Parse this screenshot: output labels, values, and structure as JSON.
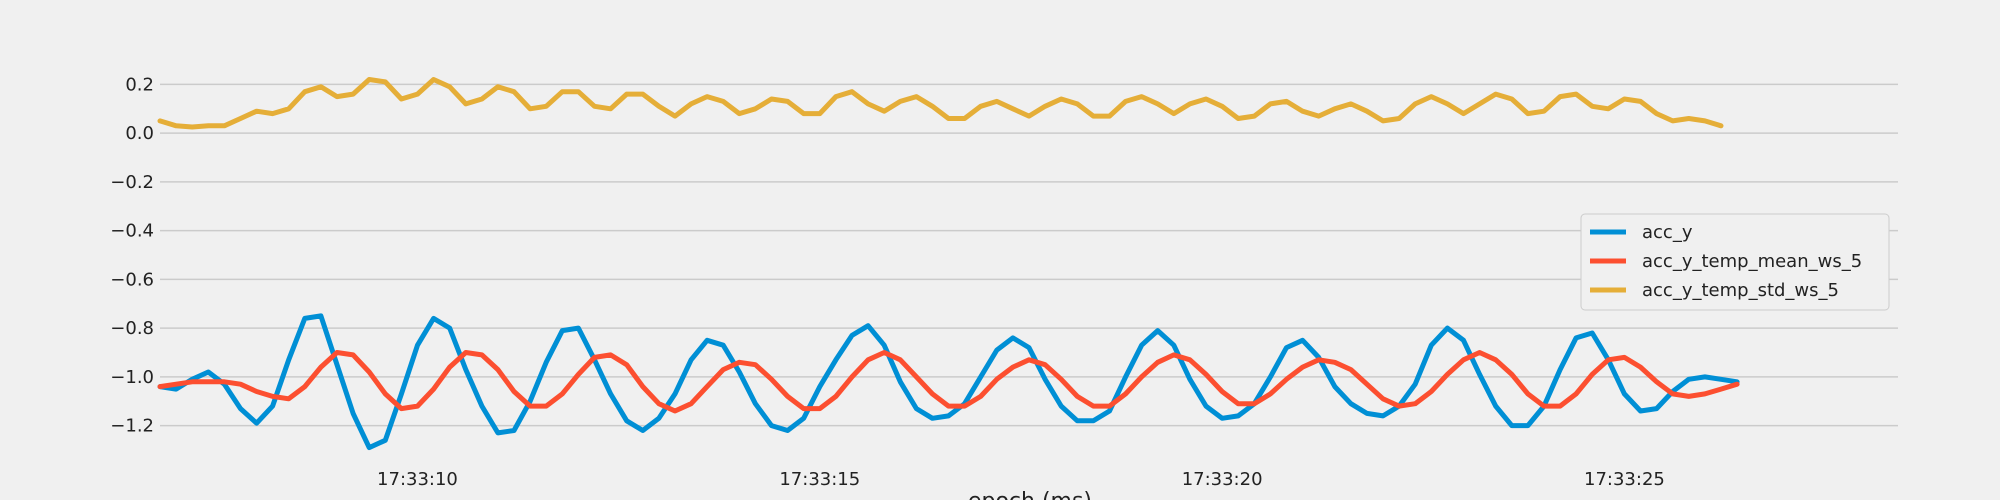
{
  "chart_data": {
    "type": "line",
    "title": "",
    "xlabel": "epoch (ms)",
    "ylabel": "",
    "x_ticks": [
      "17:33:10",
      "17:33:15",
      "17:33:20",
      "17:33:25"
    ],
    "x_tick_seconds": [
      10,
      15,
      20,
      25
    ],
    "x_start": "17:33:06.8",
    "x_end": "17:33:28.4",
    "x_step_seconds": 0.2,
    "xlim_seconds": [
      6.8,
      28.4
    ],
    "ylim": [
      -1.3,
      0.3
    ],
    "y_ticks": [
      0.2,
      0.0,
      -0.2,
      -0.4,
      -0.6,
      -0.8,
      -1.0,
      -1.2
    ],
    "y_tick_labels": [
      "0.2",
      "0.0",
      "−0.2",
      "−0.4",
      "−0.6",
      "−0.8",
      "−1.0",
      "−1.2"
    ],
    "grid": true,
    "legend_position": "right",
    "series": [
      {
        "name": "acc_y",
        "color": "#008fd5",
        "values": [
          -1.04,
          -1.05,
          -1.01,
          -0.98,
          -1.03,
          -1.13,
          -1.19,
          -1.12,
          -0.93,
          -0.76,
          -0.75,
          -0.95,
          -1.15,
          -1.29,
          -1.26,
          -1.07,
          -0.87,
          -0.76,
          -0.8,
          -0.97,
          -1.12,
          -1.23,
          -1.22,
          -1.1,
          -0.94,
          -0.81,
          -0.8,
          -0.93,
          -1.07,
          -1.18,
          -1.22,
          -1.17,
          -1.07,
          -0.93,
          -0.85,
          -0.87,
          -0.98,
          -1.11,
          -1.2,
          -1.22,
          -1.17,
          -1.04,
          -0.93,
          -0.83,
          -0.79,
          -0.87,
          -1.02,
          -1.13,
          -1.17,
          -1.16,
          -1.11,
          -1.0,
          -0.89,
          -0.84,
          -0.88,
          -1.01,
          -1.12,
          -1.18,
          -1.18,
          -1.14,
          -1.0,
          -0.87,
          -0.81,
          -0.87,
          -1.01,
          -1.12,
          -1.17,
          -1.16,
          -1.11,
          -1.0,
          -0.88,
          -0.85,
          -0.92,
          -1.04,
          -1.11,
          -1.15,
          -1.16,
          -1.12,
          -1.03,
          -0.87,
          -0.8,
          -0.85,
          -0.99,
          -1.12,
          -1.2,
          -1.2,
          -1.12,
          -0.97,
          -0.84,
          -0.82,
          -0.93,
          -1.07,
          -1.14,
          -1.13,
          -1.06,
          -1.01,
          -1.0,
          -1.01,
          -1.02
        ]
      },
      {
        "name": "acc_y_temp_mean_ws_5",
        "color": "#fc4f30",
        "values": [
          -1.04,
          -1.03,
          -1.02,
          -1.02,
          -1.02,
          -1.03,
          -1.06,
          -1.08,
          -1.09,
          -1.04,
          -0.96,
          -0.9,
          -0.91,
          -0.98,
          -1.07,
          -1.13,
          -1.12,
          -1.05,
          -0.96,
          -0.9,
          -0.91,
          -0.97,
          -1.06,
          -1.12,
          -1.12,
          -1.07,
          -0.99,
          -0.92,
          -0.91,
          -0.95,
          -1.04,
          -1.11,
          -1.14,
          -1.11,
          -1.04,
          -0.97,
          -0.94,
          -0.95,
          -1.01,
          -1.08,
          -1.13,
          -1.13,
          -1.08,
          -1.0,
          -0.93,
          -0.9,
          -0.93,
          -1.0,
          -1.07,
          -1.12,
          -1.12,
          -1.08,
          -1.01,
          -0.96,
          -0.93,
          -0.95,
          -1.01,
          -1.08,
          -1.12,
          -1.12,
          -1.07,
          -1.0,
          -0.94,
          -0.91,
          -0.93,
          -0.99,
          -1.06,
          -1.11,
          -1.11,
          -1.07,
          -1.01,
          -0.96,
          -0.93,
          -0.94,
          -0.97,
          -1.03,
          -1.09,
          -1.12,
          -1.11,
          -1.06,
          -0.99,
          -0.93,
          -0.9,
          -0.93,
          -0.99,
          -1.07,
          -1.12,
          -1.12,
          -1.07,
          -0.99,
          -0.93,
          -0.92,
          -0.96,
          -1.02,
          -1.07,
          -1.08,
          -1.07,
          -1.05,
          -1.03
        ]
      },
      {
        "name": "acc_y_temp_std_ws_5",
        "color": "#e5ae38",
        "values": [
          0.05,
          0.03,
          0.025,
          0.03,
          0.03,
          0.06,
          0.09,
          0.08,
          0.1,
          0.17,
          0.19,
          0.15,
          0.16,
          0.22,
          0.21,
          0.14,
          0.16,
          0.22,
          0.19,
          0.12,
          0.14,
          0.19,
          0.17,
          0.1,
          0.11,
          0.17,
          0.17,
          0.11,
          0.1,
          0.16,
          0.16,
          0.11,
          0.07,
          0.12,
          0.15,
          0.13,
          0.08,
          0.1,
          0.14,
          0.13,
          0.08,
          0.08,
          0.15,
          0.17,
          0.12,
          0.09,
          0.13,
          0.15,
          0.11,
          0.06,
          0.06,
          0.11,
          0.13,
          0.1,
          0.07,
          0.11,
          0.14,
          0.12,
          0.07,
          0.07,
          0.13,
          0.15,
          0.12,
          0.08,
          0.12,
          0.14,
          0.11,
          0.06,
          0.07,
          0.12,
          0.13,
          0.09,
          0.07,
          0.1,
          0.12,
          0.09,
          0.05,
          0.06,
          0.12,
          0.15,
          0.12,
          0.08,
          0.12,
          0.16,
          0.14,
          0.08,
          0.09,
          0.15,
          0.16,
          0.11,
          0.1,
          0.14,
          0.13,
          0.08,
          0.05,
          0.06,
          0.05,
          0.03
        ]
      }
    ]
  }
}
